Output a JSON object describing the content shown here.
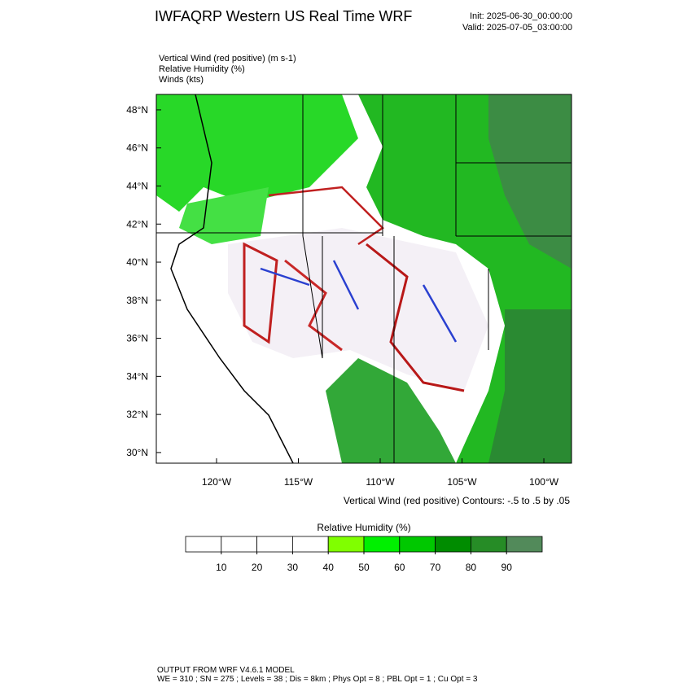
{
  "header": {
    "title": "IWFAQRP Western US Real Time WRF",
    "init": "Init: 2025-06-30_00:00:00",
    "valid": "Valid: 2025-07-05_03:00:00"
  },
  "fields": [
    "Vertical Wind (red positive)   (m s-1)",
    "Relative Humidity   (%)",
    "Winds   (kts)"
  ],
  "map": {
    "xlim": [
      -123.68,
      -98.31
    ],
    "ylim": [
      29.44,
      48.81
    ],
    "xticks": [
      {
        "value": -120,
        "label": "120°W"
      },
      {
        "value": -115,
        "label": "115°W"
      },
      {
        "value": -110,
        "label": "110°W"
      },
      {
        "value": -105,
        "label": "105°W"
      },
      {
        "value": -100,
        "label": "100°W"
      }
    ],
    "yticks": [
      {
        "value": 48,
        "label": "48°N"
      },
      {
        "value": 46,
        "label": "46°N"
      },
      {
        "value": 44,
        "label": "44°N"
      },
      {
        "value": 42,
        "label": "42°N"
      },
      {
        "value": 40,
        "label": "40°N"
      },
      {
        "value": 38,
        "label": "38°N"
      },
      {
        "value": 36,
        "label": "36°N"
      },
      {
        "value": 34,
        "label": "34°N"
      },
      {
        "value": 32,
        "label": "32°N"
      },
      {
        "value": 30,
        "label": "30°N"
      }
    ],
    "contour_note": "Vertical Wind (red positive) Contours: -.5 to .5 by .05"
  },
  "colorbar": {
    "title": "Relative Humidity  (%)",
    "lim": [
      0,
      100
    ],
    "ticks": [
      10,
      20,
      30,
      40,
      50,
      60,
      70,
      80,
      90
    ],
    "colors": [
      "#ffffff",
      "#ffffff",
      "#ffffff",
      "#ffffff",
      "#80ff00",
      "#00f000",
      "#00c800",
      "#008c00",
      "#268c26",
      "#528a5a"
    ]
  },
  "footer": [
    "OUTPUT FROM WRF V4.6.1 MODEL",
    "WE = 310 ; SN = 275 ; Levels = 38 ; Dis = 8km ; Phys Opt = 8 ; PBL Opt = 1 ; Cu Opt = 3"
  ]
}
